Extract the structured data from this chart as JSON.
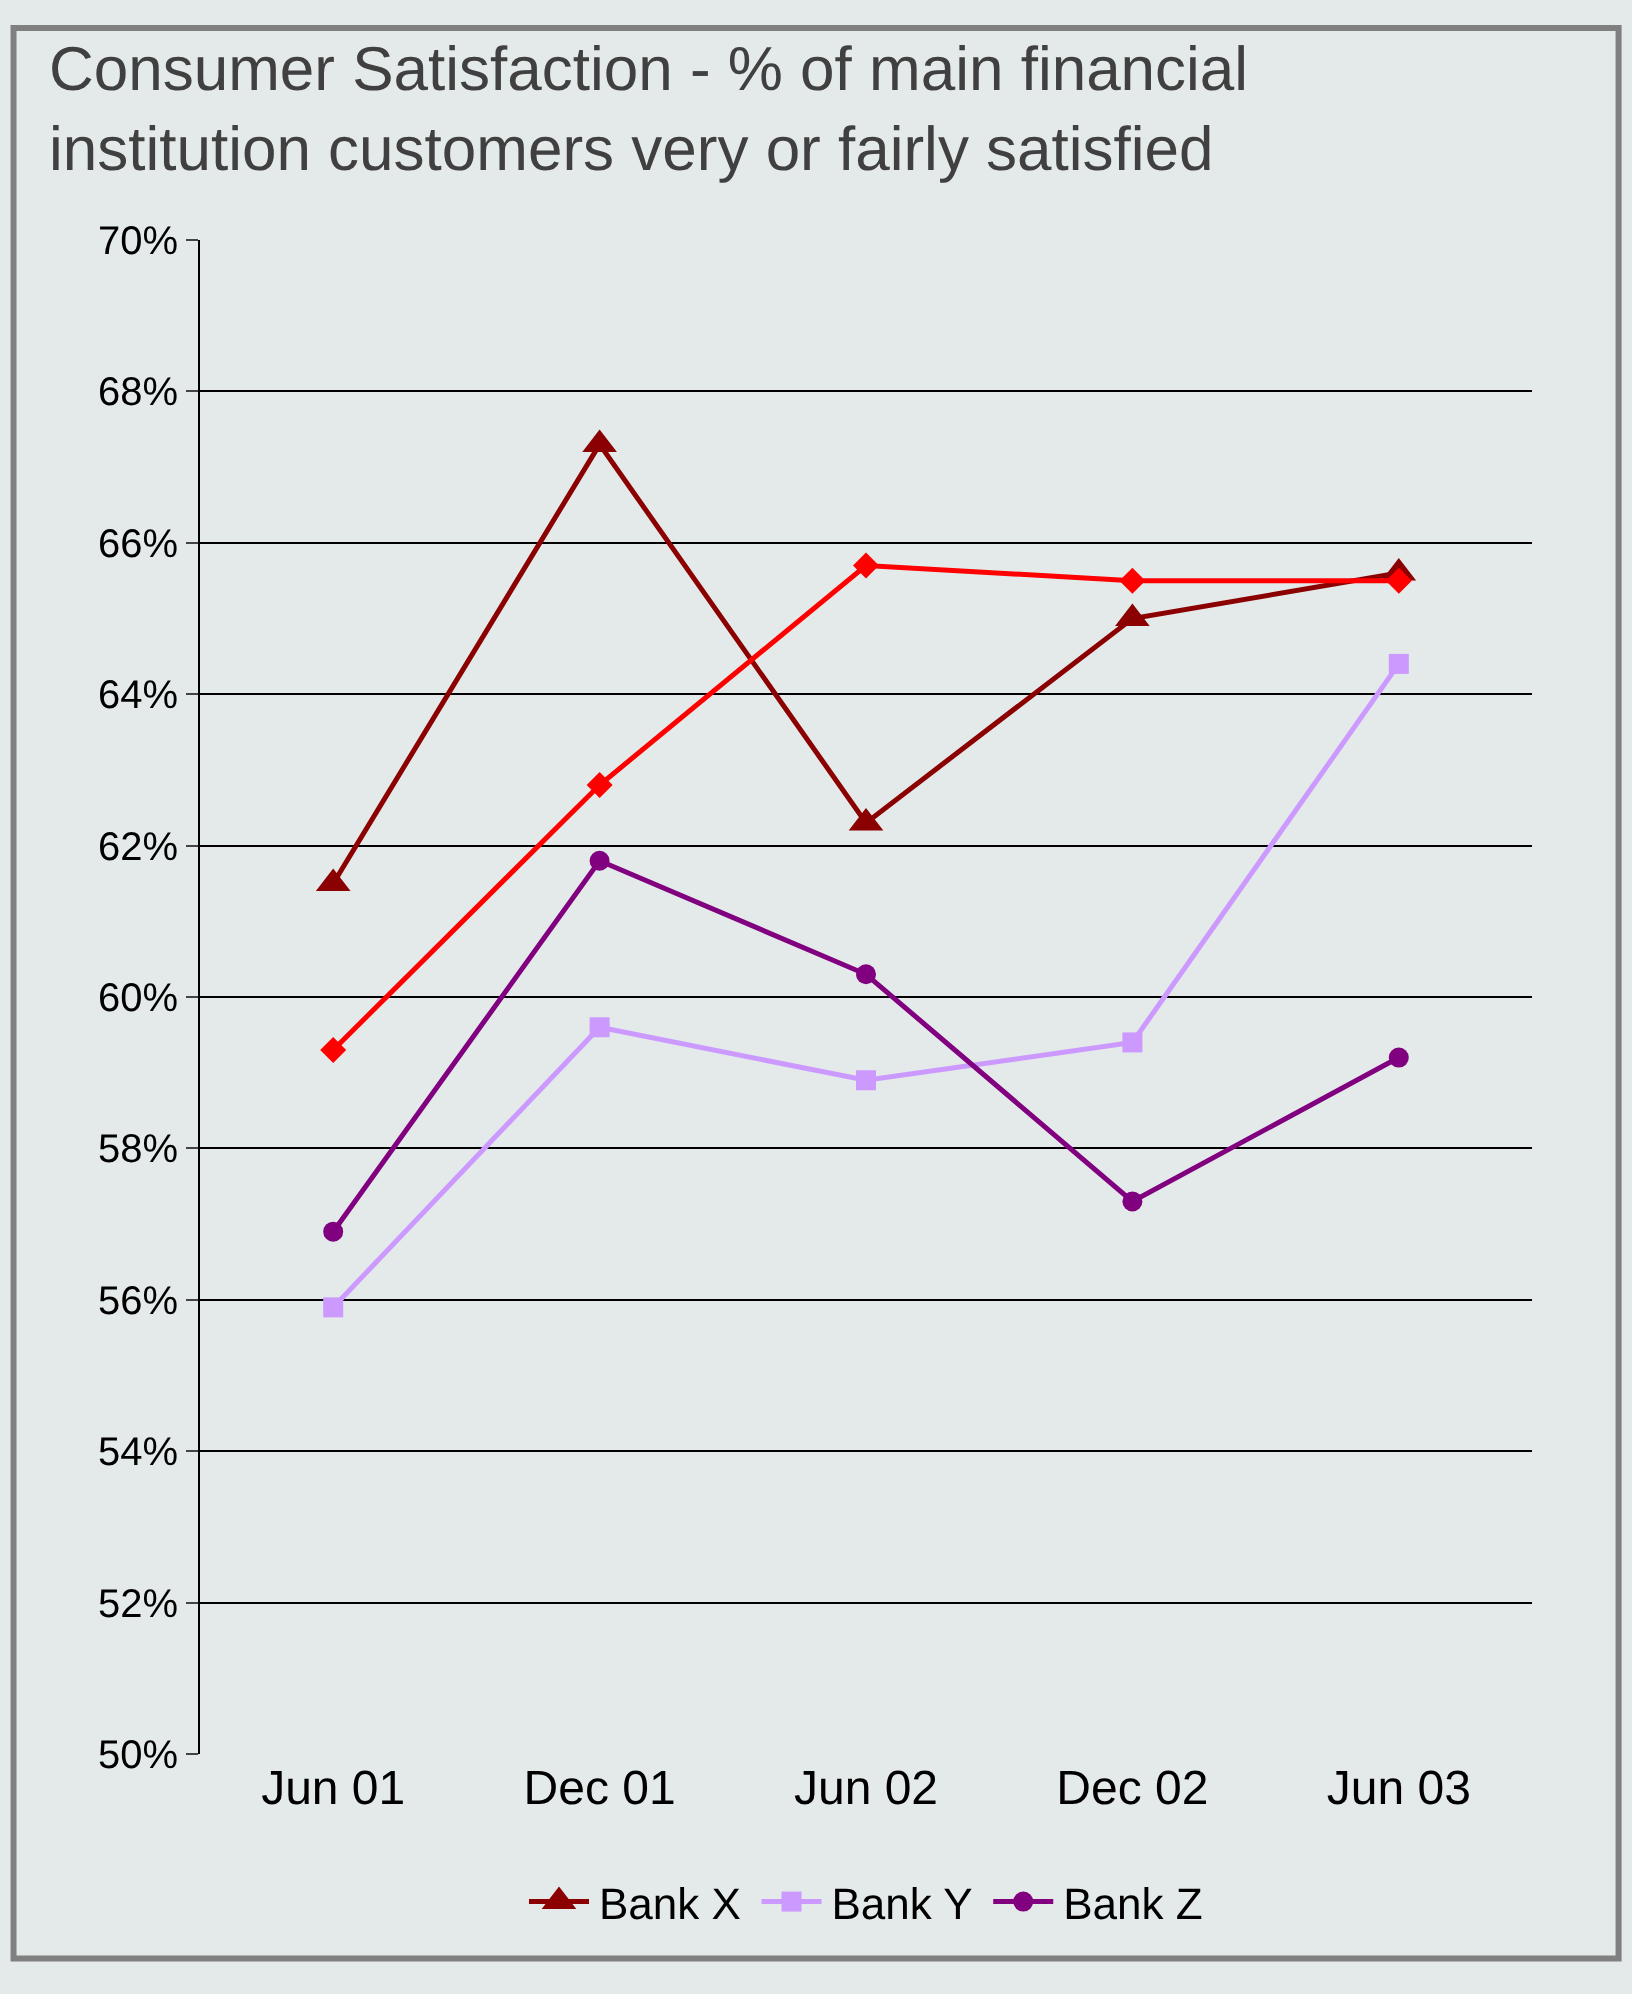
{
  "chart_data": {
    "type": "line",
    "title": "Consumer Satisfaction - % of main financial institution customers very or fairly satisfied",
    "categories": [
      "Jun 01",
      "Dec 01",
      "Jun 02",
      "Dec 02",
      "Jun 03"
    ],
    "series": [
      {
        "name": "Bank X",
        "color": "#8b0000",
        "marker": "triangle",
        "values": [
          61.5,
          67.3,
          62.3,
          65.0,
          65.6
        ]
      },
      {
        "color": "#ff0000",
        "marker": "diamond",
        "values": [
          59.3,
          62.8,
          65.7,
          65.5,
          65.5
        ]
      },
      {
        "name": "Bank Y",
        "color": "#cc99ff",
        "marker": "square",
        "values": [
          55.9,
          59.6,
          58.9,
          59.4,
          64.4
        ]
      },
      {
        "name": "Bank Z",
        "color": "#800080",
        "marker": "circle",
        "values": [
          56.9,
          61.8,
          60.3,
          57.3,
          59.2
        ]
      }
    ],
    "ylim": [
      50,
      70
    ],
    "yticks": [
      {
        "value": 50,
        "label": "50%"
      },
      {
        "value": 52,
        "label": "52%"
      },
      {
        "value": 54,
        "label": "54%"
      },
      {
        "value": 56,
        "label": "56%"
      },
      {
        "value": 58,
        "label": "58%"
      },
      {
        "value": 60,
        "label": "60%"
      },
      {
        "value": 62,
        "label": "62%"
      },
      {
        "value": 64,
        "label": "64%"
      },
      {
        "value": 66,
        "label": "66%"
      },
      {
        "value": 68,
        "label": "68%"
      },
      {
        "value": 70,
        "label": "70%"
      }
    ],
    "grid": "y",
    "legend": "bottom"
  }
}
